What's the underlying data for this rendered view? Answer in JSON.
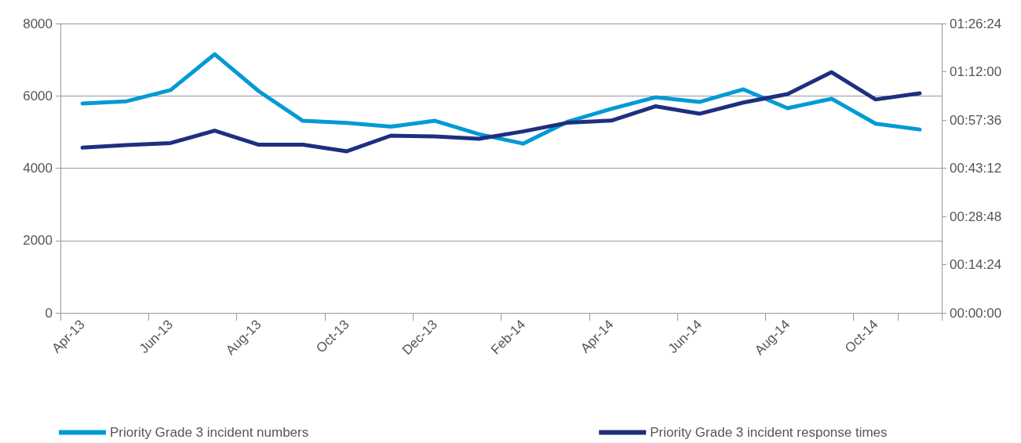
{
  "chart_data": {
    "type": "line",
    "categories": [
      "Apr-13",
      null,
      "Jun-13",
      null,
      "Aug-13",
      null,
      "Oct-13",
      null,
      "Dec-13",
      null,
      "Feb-14",
      null,
      "Apr-14",
      null,
      "Jun-14",
      null,
      "Aug-14",
      null,
      "Oct-14",
      null
    ],
    "series": [
      {
        "name": "Priority Grade 3 incident numbers",
        "color": "#009ad6",
        "values": [
          5790,
          5850,
          6160,
          7150,
          6130,
          5310,
          5250,
          5150,
          5310,
          4940,
          4680,
          5280,
          5640,
          5960,
          5830,
          6180,
          5660,
          5920,
          5230,
          5070
        ]
      },
      {
        "name": "Priority Grade 3 incident response times",
        "color": "#1f2f7f",
        "axis": "y2",
        "values": [
          0.822,
          0.835,
          0.845,
          0.907,
          0.837,
          0.837,
          0.804,
          0.882,
          0.878,
          0.866,
          0.903,
          0.946,
          0.957,
          1.028,
          0.991,
          1.047,
          1.089,
          1.198,
          1.062,
          1.093
        ]
      }
    ],
    "ylim": [
      0,
      8000
    ],
    "yticks": [
      0,
      2000,
      4000,
      6000,
      8000
    ],
    "y2lim": [
      0,
      1.44
    ],
    "y2ticks": [
      {
        "value": 0,
        "label": "00:00:00"
      },
      {
        "value": 0.24,
        "label": "00:14:24"
      },
      {
        "value": 0.48,
        "label": "00:28:48"
      },
      {
        "value": 0.72,
        "label": "00:43:12"
      },
      {
        "value": 0.96,
        "label": "00:57:36"
      },
      {
        "value": 1.2,
        "label": "01:12:00"
      },
      {
        "value": 1.44,
        "label": "01:26:24"
      }
    ],
    "grid": "y",
    "legend": "bottom",
    "marker": "none",
    "line_style": "solid"
  }
}
